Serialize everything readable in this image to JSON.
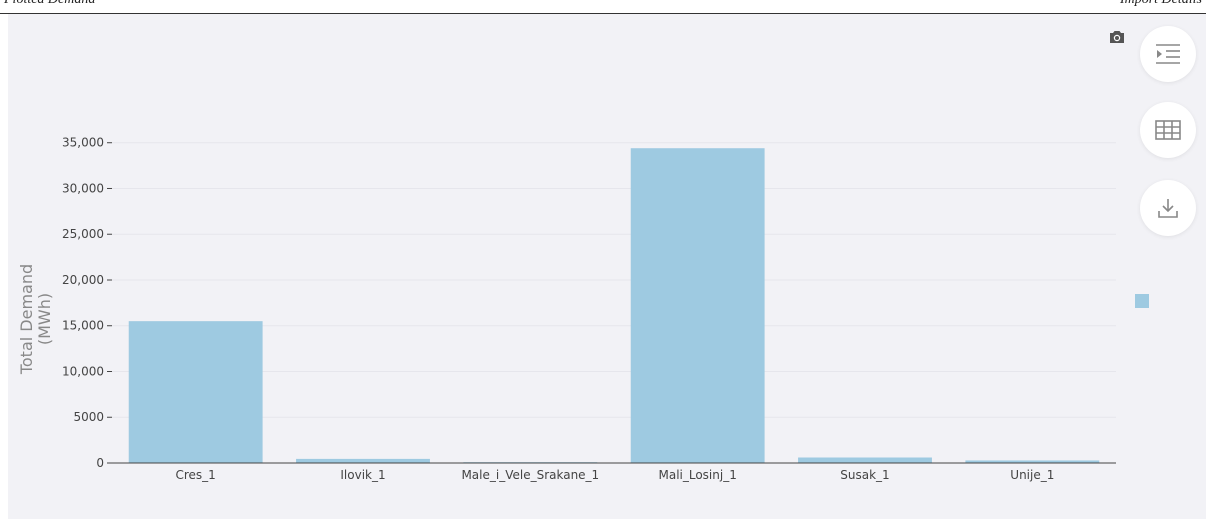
{
  "header": {
    "left_text": "Plotted Demand",
    "right_text": "Import Details"
  },
  "colors": {
    "bar": "#9ecae1",
    "panel_bg": "#f2f2f6",
    "axis": "#444444",
    "grid": "#e6e6ec"
  },
  "toolbar": {
    "camera_icon": "camera-icon",
    "buttons": [
      {
        "name": "toggle-sidebar-button",
        "icon": "indent-icon"
      },
      {
        "name": "table-view-button",
        "icon": "table-icon"
      },
      {
        "name": "download-button",
        "icon": "download-icon"
      }
    ]
  },
  "chart_data": {
    "type": "bar",
    "categories": [
      "Cres_1",
      "Ilovik_1",
      "Male_i_Vele_Srakane_1",
      "Mali_Losinj_1",
      "Susak_1",
      "Unije_1"
    ],
    "values": [
      15500,
      450,
      90,
      34400,
      600,
      280
    ],
    "ylabel": "Total Demand (MWh)",
    "ylabel_lines": [
      "Total Demand",
      "(MWh)"
    ],
    "ylim": [
      0,
      36500
    ],
    "yticks": [
      0,
      5000,
      10000,
      15000,
      20000,
      25000,
      30000,
      35000
    ],
    "ytick_labels": [
      "0",
      "5000",
      "10,000",
      "15,000",
      "20,000",
      "25,000",
      "30,000",
      "35,000"
    ],
    "grid": true,
    "legend": "right"
  }
}
